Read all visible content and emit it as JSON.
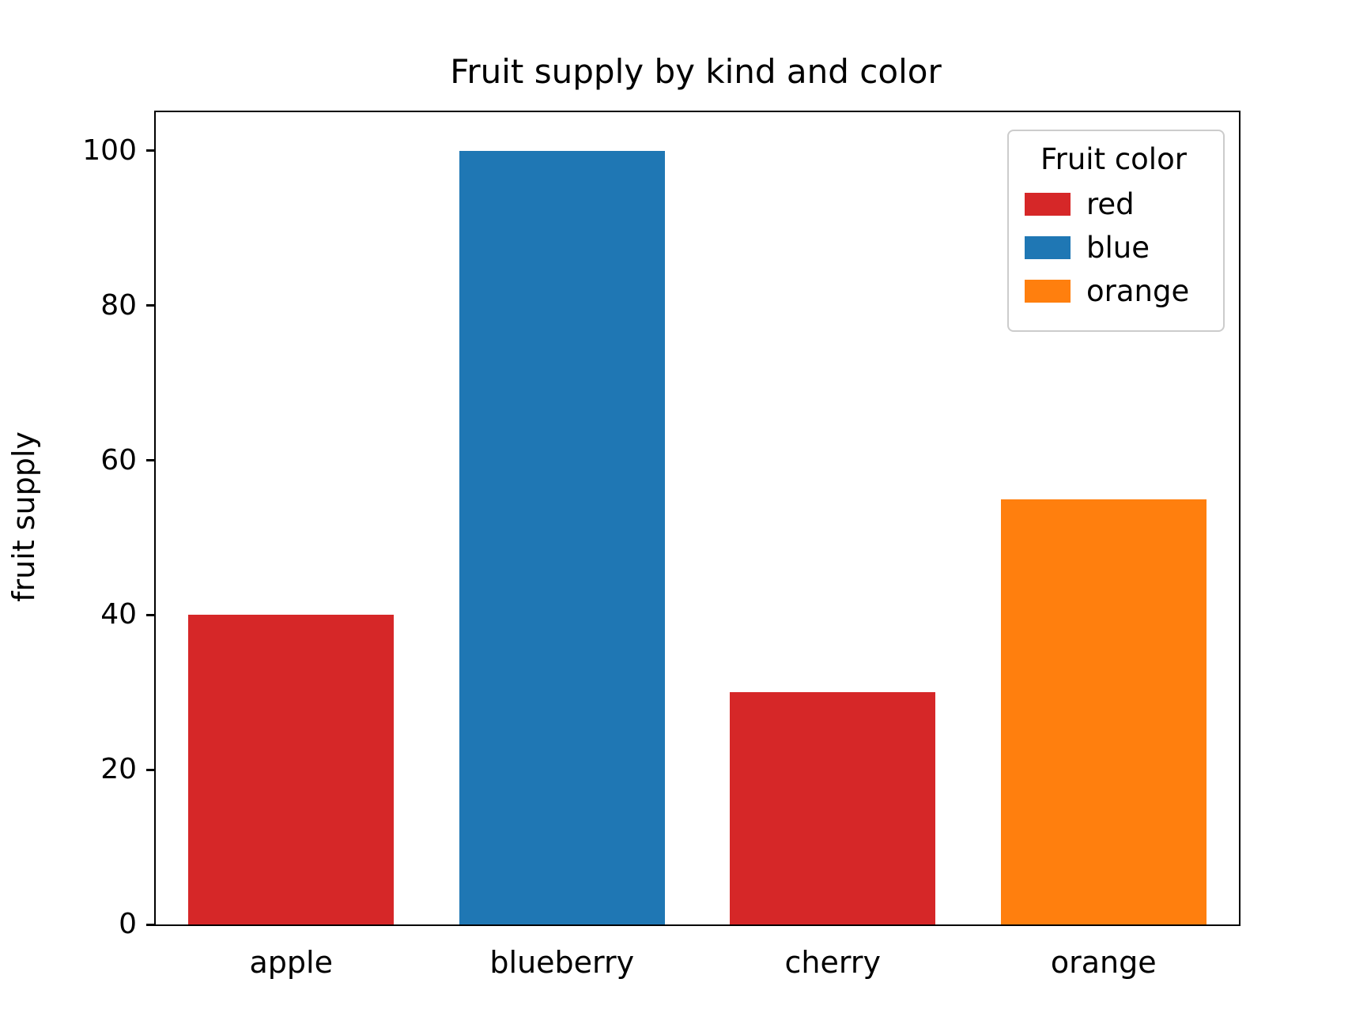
{
  "chart_data": {
    "type": "bar",
    "title": "Fruit supply by kind and color",
    "xlabel": "",
    "ylabel": "fruit supply",
    "categories": [
      "apple",
      "blueberry",
      "cherry",
      "orange"
    ],
    "values": [
      40,
      100,
      30,
      55
    ],
    "bar_color_names": [
      "red",
      "blue",
      "red",
      "orange"
    ],
    "color_map": {
      "red": "#d62728",
      "blue": "#1f77b4",
      "orange": "#ff7f0e"
    },
    "ylim": [
      0,
      105
    ],
    "yticks": [
      0,
      20,
      40,
      60,
      80,
      100
    ],
    "grid": false,
    "legend": {
      "title": "Fruit color",
      "position": "upper right",
      "entries": [
        {
          "label": "red",
          "color": "#d62728"
        },
        {
          "label": "blue",
          "color": "#1f77b4"
        },
        {
          "label": "orange",
          "color": "#ff7f0e"
        }
      ]
    }
  }
}
